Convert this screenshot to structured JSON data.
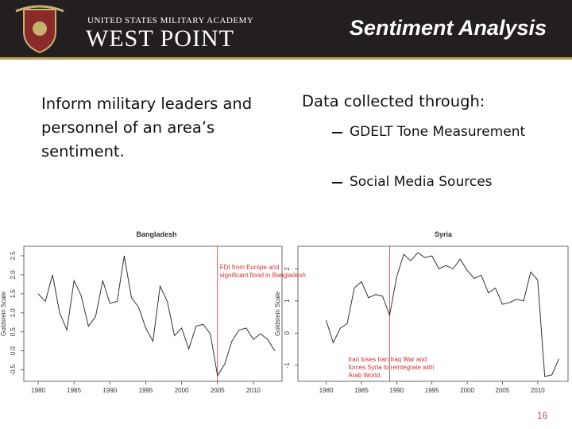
{
  "header": {
    "org_line1": "UNITED STATES MILITARY ACADEMY",
    "org_line2": "WEST POINT",
    "title": "Sentiment Analysis"
  },
  "left_text": "Inform military leaders and personnel of an area’s sentiment.",
  "right_text": {
    "heading": "Data collected through:",
    "items": [
      "GDELT Tone Measurement",
      "Social Media Sources"
    ]
  },
  "chart_data": [
    {
      "type": "line",
      "title": "Bangladesh",
      "y_label": "Goldstein Scale",
      "color": "#333333",
      "x": [
        1980,
        1981,
        1982,
        1983,
        1984,
        1985,
        1986,
        1987,
        1988,
        1989,
        1990,
        1991,
        1992,
        1993,
        1994,
        1995,
        1996,
        1997,
        1998,
        1999,
        2000,
        2001,
        2002,
        2003,
        2004,
        2005,
        2006,
        2007,
        2008,
        2009,
        2010,
        2011,
        2012,
        2013
      ],
      "values": [
        1.5,
        1.3,
        2.0,
        1.0,
        0.55,
        1.85,
        1.45,
        0.65,
        0.9,
        1.85,
        1.25,
        1.3,
        2.5,
        1.4,
        1.15,
        0.6,
        0.25,
        1.7,
        1.3,
        0.4,
        0.6,
        0.05,
        0.65,
        0.7,
        0.45,
        -0.65,
        -0.35,
        0.25,
        0.55,
        0.6,
        0.3,
        0.45,
        0.3,
        0.0
      ],
      "xlim": [
        1978,
        2014
      ],
      "ylim": [
        -0.8,
        2.75
      ],
      "xticks": [
        1980,
        1985,
        1990,
        1995,
        2000,
        2005,
        2010
      ],
      "yticks": [
        -0.5,
        {
          "value": 0,
          "label": "0.0"
        },
        0.5,
        {
          "value": 1,
          "label": "1.0"
        },
        1.5,
        {
          "value": 2,
          "label": "2.0"
        },
        2.5
      ],
      "annotation": {
        "text": "FDI from Europe and significant flood in Bangladesh",
        "x": 2005,
        "color": "#d03030"
      }
    },
    {
      "type": "line",
      "title": "Syria",
      "y_label": "Goldstein Scale",
      "color": "#333333",
      "x": [
        1980,
        1981,
        1982,
        1983,
        1984,
        1985,
        1986,
        1987,
        1988,
        1989,
        1990,
        1991,
        1992,
        1993,
        1994,
        1995,
        1996,
        1997,
        1998,
        1999,
        2000,
        2001,
        2002,
        2003,
        2004,
        2005,
        2006,
        2007,
        2008,
        2009,
        2010,
        2011,
        2012,
        2013
      ],
      "values": [
        0.4,
        -0.3,
        0.15,
        0.3,
        1.4,
        1.6,
        1.1,
        1.2,
        1.15,
        0.55,
        1.75,
        2.45,
        2.25,
        2.5,
        2.35,
        2.4,
        2.0,
        2.1,
        2.0,
        2.3,
        1.95,
        1.7,
        1.8,
        1.25,
        1.4,
        0.9,
        0.95,
        1.05,
        1.0,
        1.9,
        1.65,
        -1.35,
        -1.3,
        -0.8
      ],
      "xlim": [
        1976,
        2014.3
      ],
      "ylim": [
        -1.5,
        2.7
      ],
      "xticks": [
        1980,
        1985,
        1990,
        1995,
        2000,
        2005,
        2010
      ],
      "yticks": [
        -1,
        0,
        1,
        2
      ],
      "annotation": {
        "text": "Iran loses Iran Iraq War and forces Syria to reintegrate with Arab World.",
        "x": 1989,
        "color": "#d03030"
      }
    }
  ],
  "page_number": "16"
}
